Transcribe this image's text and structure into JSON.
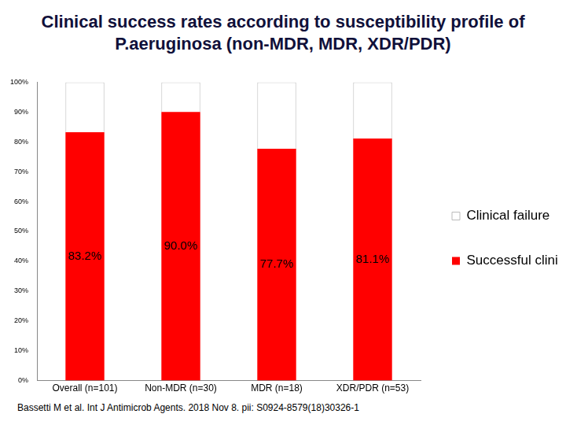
{
  "chart_data": {
    "type": "bar",
    "title": "Clinical success rates according to susceptibility profile of P.aeruginosa (non-MDR, MDR, XDR/PDR)",
    "categories": [
      "Overall (n=101)",
      "Non-MDR (n=30)",
      "MDR (n=18)",
      "XDR/PDR (n=53)"
    ],
    "series": [
      {
        "name": "Successful clinical outcome",
        "color": "#ff0000",
        "values": [
          83.2,
          90.0,
          77.7,
          81.1
        ],
        "data_labels": true,
        "value_labels": [
          "83.2%",
          "90.0%",
          "77.7%",
          "81.1%"
        ]
      },
      {
        "name": "Clinical failure",
        "color": "#ffffff",
        "values": [
          16.8,
          10.0,
          22.3,
          18.9
        ]
      }
    ],
    "stacked": true,
    "ylim": [
      0,
      100
    ],
    "yticks": [
      {
        "value": 0,
        "label": "0%"
      },
      {
        "value": 10,
        "label": "10%"
      },
      {
        "value": 20,
        "label": "20%"
      },
      {
        "value": 30,
        "label": "30%"
      },
      {
        "value": 40,
        "label": "40%"
      },
      {
        "value": 50,
        "label": "50%"
      },
      {
        "value": 60,
        "label": "60%"
      },
      {
        "value": 70,
        "label": "70%"
      },
      {
        "value": 80,
        "label": "80%"
      },
      {
        "value": 90,
        "label": "90%"
      },
      {
        "value": 100,
        "label": "100%"
      }
    ],
    "grid": false,
    "legend": "right",
    "annotations": [
      "Bassetti M et al. Int J Antimicrob Agents. 2018 Nov 8. pii: S0924-8579(18)30326-1"
    ]
  }
}
